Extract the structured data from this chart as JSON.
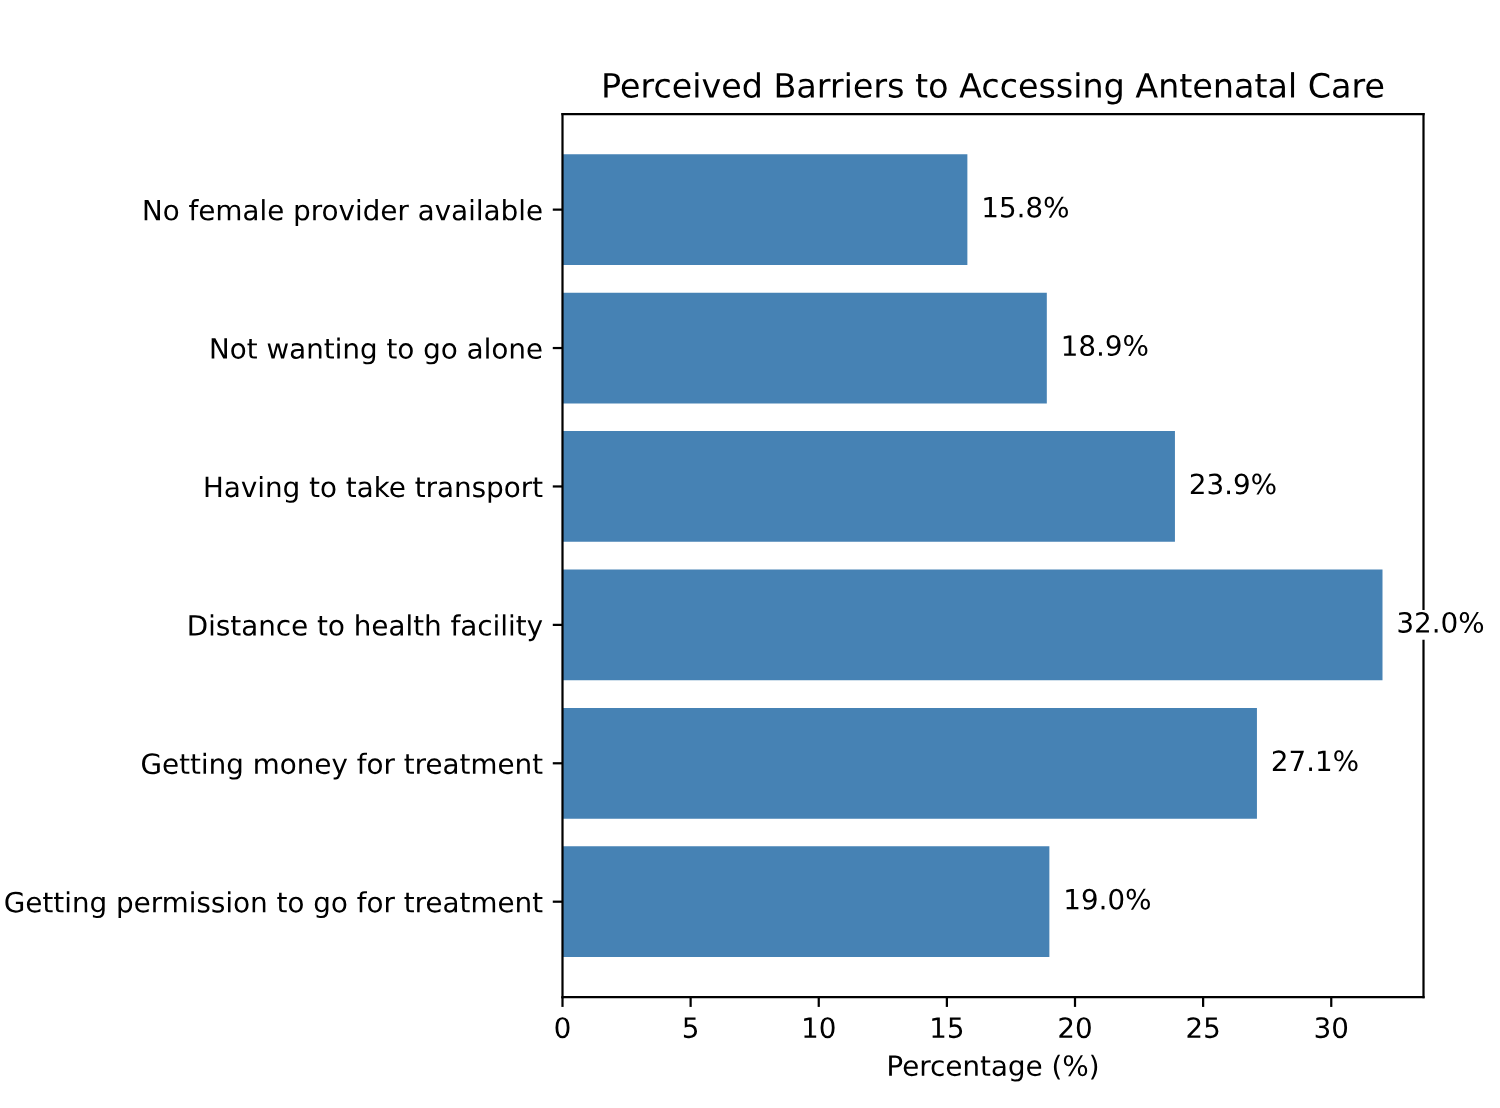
{
  "chart_data": {
    "type": "bar",
    "orientation": "horizontal",
    "title": "Perceived Barriers to Accessing Antenatal Care",
    "xlabel": "Percentage (%)",
    "categories": [
      "No female provider available",
      "Not wanting to go alone",
      "Having to take transport",
      "Distance to health facility",
      "Getting money for treatment",
      "Getting permission to go for treatment"
    ],
    "values": [
      15.8,
      18.9,
      23.9,
      32.0,
      27.1,
      19.0
    ],
    "value_labels": [
      "15.8%",
      "18.9%",
      "23.9%",
      "32.0%",
      "27.1%",
      "19.0%"
    ],
    "color": "#4682b4",
    "xlim": [
      0,
      33.6
    ],
    "xticks": [
      0,
      5,
      10,
      15,
      20,
      25,
      30
    ],
    "grid": false
  }
}
